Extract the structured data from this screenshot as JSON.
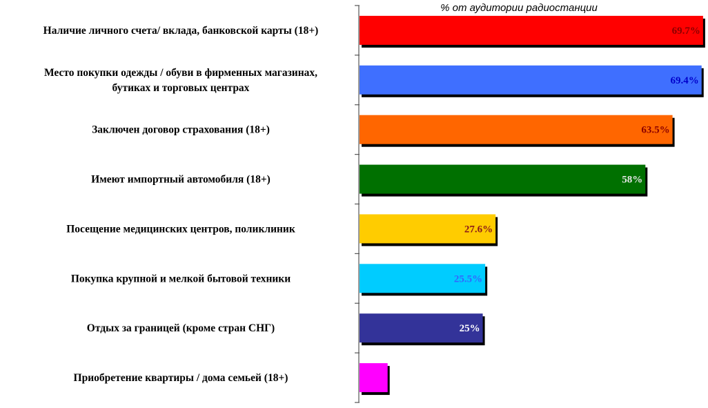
{
  "chart_data": {
    "type": "bar",
    "orientation": "horizontal",
    "title": "",
    "xlabel": "% от аудитории радиостанции",
    "ylabel": "",
    "xlim": [
      0,
      70
    ],
    "grid": false,
    "legend": "none",
    "categories": [
      [
        "Наличие личного счета/ вклада, банковской карты (18+)"
      ],
      [
        "Место покупки одежды / обуви в фирменных магазинах,",
        "бутиках и торговых  центрах"
      ],
      [
        "Заключен договор страхования (18+)"
      ],
      [
        "Имеют импортный автомобиля (18+)"
      ],
      [
        "Посещение медицинских центров, поликлиник"
      ],
      [
        "Покупка крупной и мелкой бытовой техники"
      ],
      [
        "Отдых за границей (кроме стран СНГ)"
      ],
      [
        "Приобретение квартиры / дома семьей (18+)"
      ]
    ],
    "values": [
      69.7,
      69.4,
      63.5,
      58,
      27.6,
      25.5,
      25,
      5.7
    ],
    "data_labels": [
      "69.7%",
      "69.4%",
      "63.5%",
      "58%",
      "27.6%",
      "25.5%",
      "25%",
      ""
    ],
    "bar_colors": [
      "#ff0000",
      "#3f6fff",
      "#ff6600",
      "#007000",
      "#ffcc00",
      "#00ccff",
      "#333399",
      "#ff00ff"
    ],
    "label_colors": [
      "#8b0000",
      "#0000cc",
      "#8b0000",
      "#e6e6e6",
      "#8b1a1a",
      "#3366ff",
      "#ffffff",
      "#000000"
    ]
  }
}
